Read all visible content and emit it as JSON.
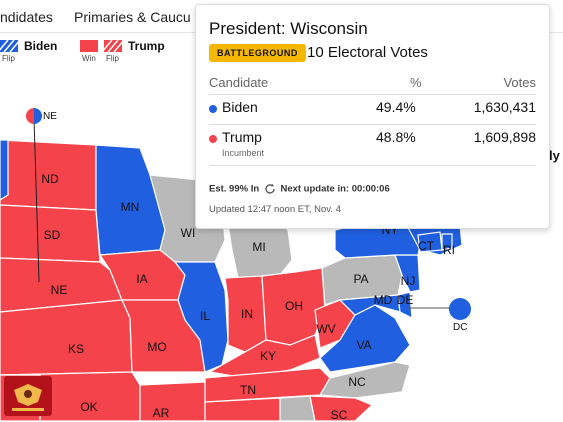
{
  "nav": {
    "items": [
      "ndidates",
      "Primaries & Caucu"
    ]
  },
  "legend": {
    "biden_label": "Biden",
    "trump_label": "Trump",
    "flip": "Flip",
    "win": "Win"
  },
  "colors": {
    "dem": "#1f5fe0",
    "rep": "#f4434a",
    "undecided": "#b9b9b9",
    "battleground": "#f5b700"
  },
  "map": {
    "ne_label": "NE",
    "dc_label": "DC",
    "right_cut_text": "ly",
    "states": {
      "ND": "ND",
      "SD": "SD",
      "NE": "NE",
      "KS": "KS",
      "OK": "OK",
      "MN": "MN",
      "WI": "WI",
      "IA": "IA",
      "MO": "MO",
      "IL": "IL",
      "IN": "IN",
      "MI": "MI",
      "OH": "OH",
      "KY": "KY",
      "TN": "TN",
      "AR": "AR",
      "WV": "WV",
      "VA": "VA",
      "NC": "NC",
      "SC": "SC",
      "PA": "PA",
      "NY": "NY",
      "NJ": "NJ",
      "MD": "MD",
      "DE": "DE",
      "CT": "CT",
      "RI": "RI"
    }
  },
  "popup": {
    "title": "President: Wisconsin",
    "badge": "BATTLEGROUND",
    "electoral_votes": "10 Electoral Votes",
    "columns": {
      "candidate": "Candidate",
      "pct": "%",
      "votes": "Votes"
    },
    "candidates": [
      {
        "name": "Biden",
        "pct": "49.4%",
        "votes": "1,630,431",
        "note": "",
        "color": "#1f5fe0"
      },
      {
        "name": "Trump",
        "pct": "48.8%",
        "votes": "1,609,898",
        "note": "Incumbent",
        "color": "#f4434a"
      }
    ],
    "est": "Est. 99% In",
    "next_update": "Next update in: 00:00:06",
    "updated": "Updated 12:47 noon ET, Nov. 4"
  }
}
